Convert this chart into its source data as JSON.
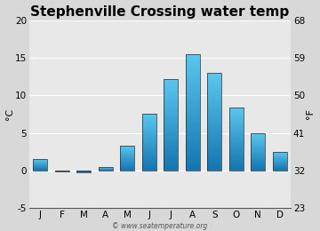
{
  "title": "Stephenville Crossing water temp",
  "months": [
    "J",
    "F",
    "M",
    "A",
    "M",
    "J",
    "J",
    "A",
    "S",
    "O",
    "N",
    "D"
  ],
  "values_c": [
    1.5,
    -0.2,
    -0.3,
    0.4,
    3.3,
    7.6,
    12.2,
    15.5,
    13.0,
    8.4,
    5.0,
    2.5
  ],
  "ylim_c": [
    -5,
    20
  ],
  "yticks_c": [
    -5,
    0,
    5,
    10,
    15,
    20
  ],
  "yticks_f": [
    23,
    32,
    41,
    50,
    59,
    68
  ],
  "ylabel_left": "°C",
  "ylabel_right": "°F",
  "bar_color_top": "#5bc8f0",
  "bar_color_bottom": "#1475b0",
  "background_color": "#d8d8d8",
  "plot_bg_color": "#e8e8e8",
  "grid_color": "#ffffff",
  "watermark": "© www.seatemperature.org",
  "title_fontsize": 11,
  "axis_fontsize": 8,
  "tick_fontsize": 7.5
}
